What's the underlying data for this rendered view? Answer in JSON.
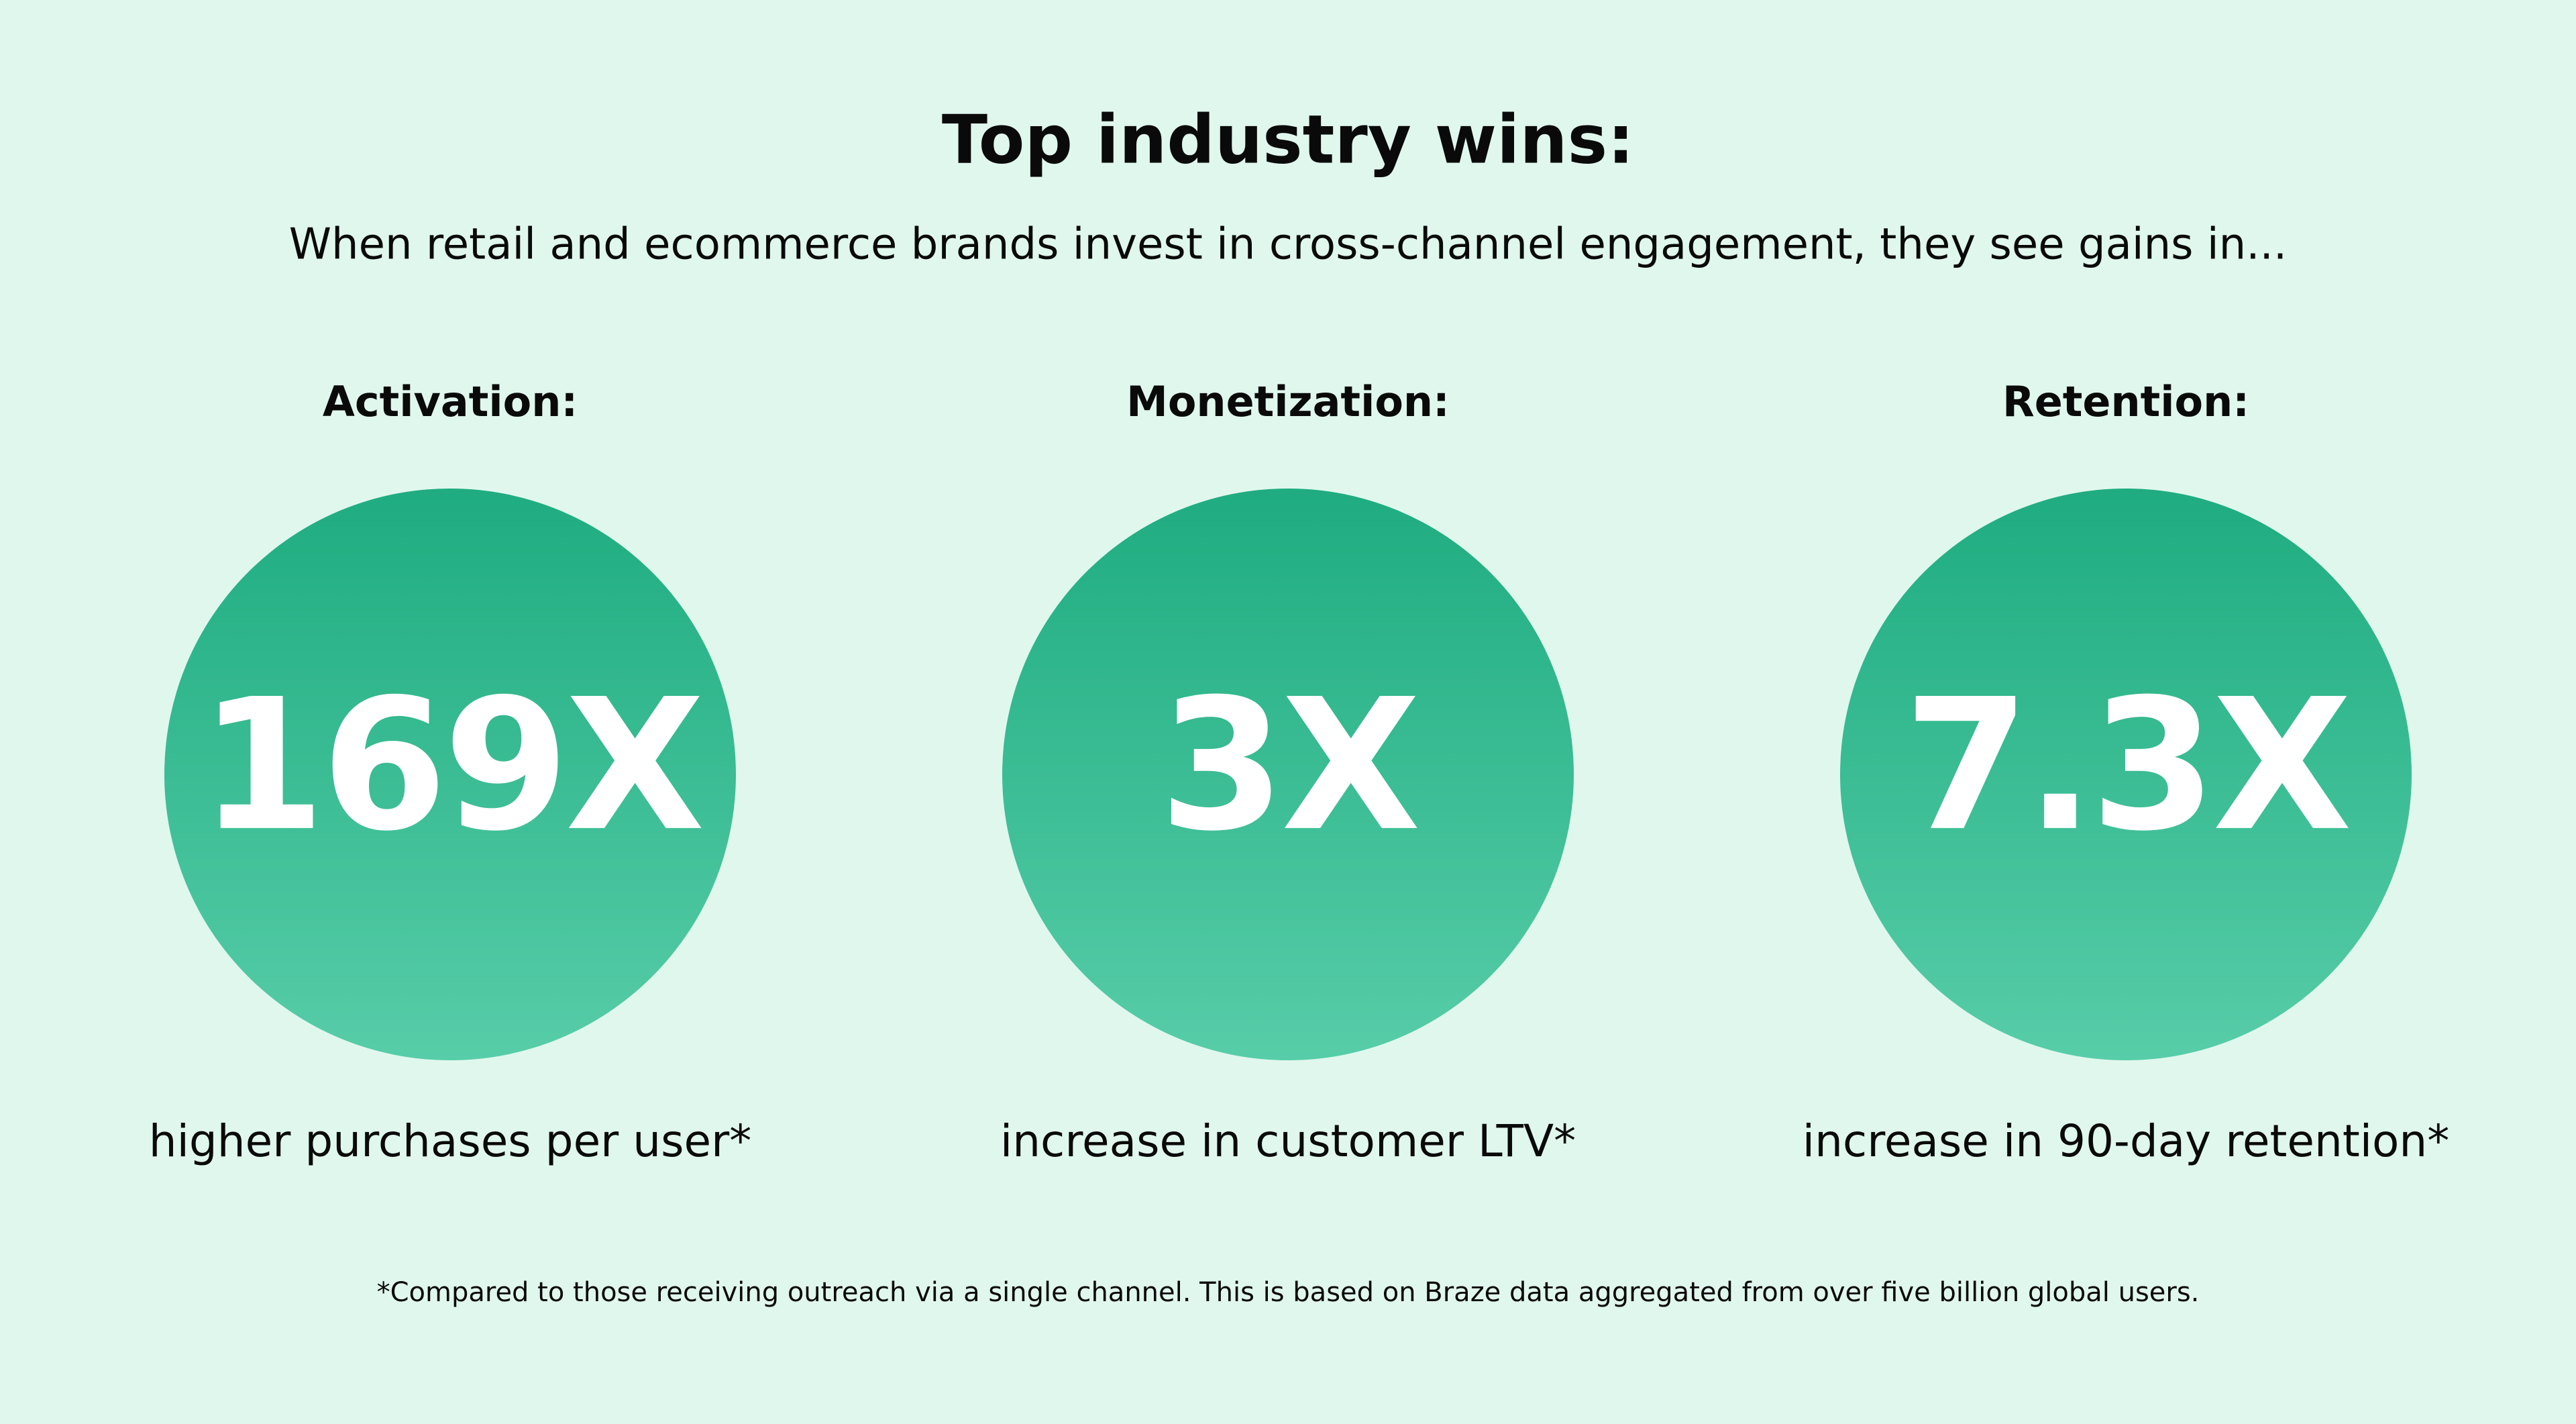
{
  "header": {
    "title": "Top industry wins:",
    "subtitle": "When retail and ecommerce brands invest in cross-channel engagement, they see gains in..."
  },
  "stats": [
    {
      "label": "Activation:",
      "value": "169X",
      "caption": "higher purchases per user*"
    },
    {
      "label": "Monetization:",
      "value": "3X",
      "caption": "increase in customer LTV*"
    },
    {
      "label": "Retention:",
      "value": "7.3X",
      "caption": "increase in 90-day retention*"
    }
  ],
  "footnote": "*Compared to those receiving outreach via a single channel. This is based on Braze data aggregated from over five billion global users."
}
